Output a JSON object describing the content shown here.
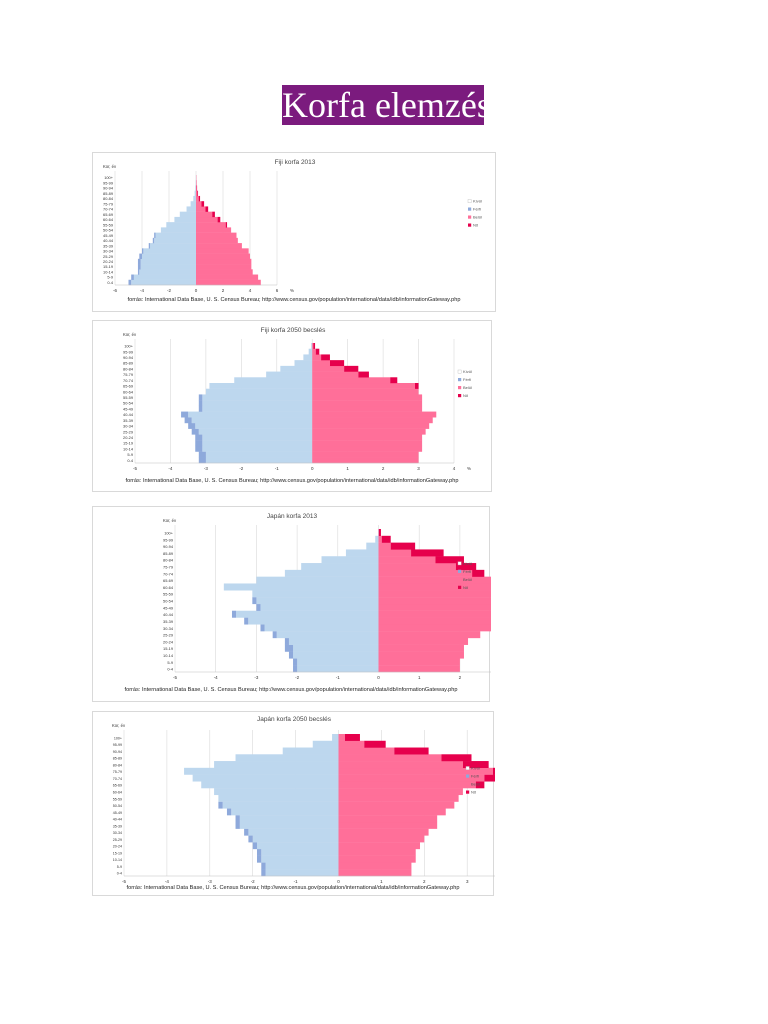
{
  "title": "Korfa elemzés",
  "colors": {
    "male": "#bdd7ee",
    "male_excess": "#8ea9db",
    "female": "#ff6f99",
    "female_excess": "#e6004c"
  },
  "chart_data": [
    {
      "type": "bar",
      "title": "Fiji korfa 2013",
      "ylabel": "Kor, év",
      "xlabel": "%",
      "xlim": [
        -6,
        6
      ],
      "xticks": [
        "-6",
        "-4",
        "-2",
        "0",
        "2",
        "4",
        "6"
      ],
      "categories": [
        "0-4",
        "5-9",
        "10-14",
        "15-19",
        "20-24",
        "25-29",
        "30-34",
        "35-39",
        "40-44",
        "45-49",
        "50-54",
        "55-59",
        "60-64",
        "65-69",
        "70-74",
        "75-79",
        "80-84",
        "85-89",
        "90-94",
        "95-99",
        "100+"
      ],
      "legend": [
        "Kívül",
        "Férfi",
        "Belül",
        "Nő"
      ],
      "legend_position": "right",
      "series": [
        {
          "name": "Férfi",
          "values": [
            5.0,
            4.8,
            4.3,
            4.3,
            4.3,
            4.2,
            4.0,
            3.5,
            3.2,
            3.1,
            2.6,
            2.2,
            1.6,
            1.2,
            0.7,
            0.4,
            0.2,
            0.1,
            0.05,
            0.02,
            0.01
          ]
        },
        {
          "name": "Nő",
          "values": [
            4.8,
            4.6,
            4.2,
            4.1,
            4.1,
            4.0,
            3.9,
            3.4,
            3.1,
            3.0,
            2.6,
            2.3,
            1.8,
            1.4,
            0.9,
            0.6,
            0.3,
            0.15,
            0.08,
            0.04,
            0.02
          ]
        }
      ],
      "source": "forrás: International Data Base, U. S. Census Bureau; http://www.census.gov/population/international/data/idb/informationGateway.php"
    },
    {
      "type": "bar",
      "title": "Fiji korfa 2050 becslés",
      "ylabel": "Kor, év",
      "xlabel": "%",
      "xlim": [
        -5,
        4
      ],
      "xticks": [
        "-5",
        "-4",
        "-3",
        "-2",
        "-1",
        "0",
        "1",
        "2",
        "3",
        "4"
      ],
      "categories": [
        "0-4",
        "5-9",
        "10-14",
        "15-19",
        "20-24",
        "25-29",
        "30-34",
        "35-39",
        "40-44",
        "45-49",
        "50-54",
        "55-59",
        "60-64",
        "65-69",
        "70-74",
        "75-79",
        "80-84",
        "85-89",
        "90-94",
        "95-99",
        "100+"
      ],
      "legend": [
        "Kívül",
        "Férfi",
        "Belül",
        "Nő"
      ],
      "legend_position": "right",
      "series": [
        {
          "name": "Férfi",
          "values": [
            3.2,
            3.2,
            3.3,
            3.3,
            3.3,
            3.4,
            3.5,
            3.6,
            3.7,
            3.2,
            3.2,
            3.2,
            3.0,
            2.9,
            2.2,
            1.3,
            0.9,
            0.5,
            0.25,
            0.1,
            0.03
          ]
        },
        {
          "name": "Nő",
          "values": [
            3.0,
            3.0,
            3.1,
            3.1,
            3.1,
            3.2,
            3.3,
            3.4,
            3.5,
            3.1,
            3.1,
            3.1,
            3.0,
            3.0,
            2.4,
            1.6,
            1.3,
            0.9,
            0.5,
            0.2,
            0.08
          ]
        }
      ],
      "source": "forrás: International Data Base, U. S. Census Bureau; http://www.census.gov/population/international/data/idb/informationGateway.php"
    },
    {
      "type": "bar",
      "title": "Japán korfa 2013",
      "ylabel": "Kor, év",
      "xlabel": "%",
      "xlim": [
        -5,
        5
      ],
      "xticks": [
        "-5",
        "-4",
        "-3",
        "-2",
        "-1",
        "0",
        "1",
        "2",
        "3",
        "4",
        "5"
      ],
      "categories": [
        "0-4",
        "5-9",
        "10-14",
        "15-19",
        "20-24",
        "25-29",
        "30-34",
        "35-39",
        "40-44",
        "45-49",
        "50-54",
        "55-59",
        "60-64",
        "65-69",
        "70-74",
        "75-79",
        "80-84",
        "85-89",
        "90-94",
        "95-99",
        "100+"
      ],
      "legend": [
        "Kívül",
        "Férfi",
        "Belül",
        "Nő"
      ],
      "legend_position": "right",
      "series": [
        {
          "name": "Férfi",
          "values": [
            2.1,
            2.1,
            2.2,
            2.3,
            2.3,
            2.6,
            2.9,
            3.3,
            3.6,
            3.0,
            3.1,
            3.1,
            3.8,
            3.0,
            2.3,
            1.9,
            1.4,
            0.8,
            0.3,
            0.08,
            0.01
          ]
        },
        {
          "name": "Nő",
          "values": [
            2.0,
            2.0,
            2.1,
            2.1,
            2.2,
            2.5,
            2.8,
            3.2,
            3.5,
            2.9,
            3.0,
            3.1,
            3.8,
            3.2,
            2.6,
            2.4,
            2.1,
            1.6,
            0.9,
            0.3,
            0.06
          ]
        }
      ],
      "source": "forrás: International Data Base, U. S. Census Bureau; http://www.census.gov/population/international/data/idb/informationGateway.php"
    },
    {
      "type": "bar",
      "title": "Japán korfa 2050 becslés",
      "ylabel": "Kor, év",
      "xlabel": "%",
      "xlim": [
        -5,
        5
      ],
      "xticks": [
        "-5",
        "-4",
        "-3",
        "-2",
        "-1",
        "0",
        "1",
        "2",
        "3",
        "4",
        "5"
      ],
      "categories": [
        "0-4",
        "5-9",
        "10-14",
        "15-19",
        "20-24",
        "25-29",
        "30-34",
        "35-39",
        "40-44",
        "45-49",
        "50-54",
        "55-59",
        "60-64",
        "65-69",
        "70-74",
        "75-79",
        "80-84",
        "85-89",
        "90-94",
        "95-99",
        "100+"
      ],
      "legend": [
        "Kívül",
        "Férfi",
        "Belül",
        "Nő"
      ],
      "legend_position": "right",
      "series": [
        {
          "name": "Férfi",
          "values": [
            1.8,
            1.8,
            1.9,
            1.9,
            2.0,
            2.1,
            2.2,
            2.4,
            2.4,
            2.6,
            2.8,
            2.8,
            2.9,
            3.2,
            3.4,
            3.6,
            2.9,
            2.4,
            1.3,
            0.6,
            0.15
          ]
        },
        {
          "name": "Nő",
          "values": [
            1.7,
            1.7,
            1.8,
            1.8,
            1.9,
            2.0,
            2.1,
            2.3,
            2.3,
            2.5,
            2.7,
            2.8,
            2.9,
            3.4,
            3.9,
            4.2,
            3.5,
            3.1,
            2.1,
            1.1,
            0.5
          ]
        }
      ],
      "source": "forrás: International Data Base, U. S. Census Bureau; http://www.census.gov/population/international/data/idb/informationGateway.php"
    }
  ]
}
